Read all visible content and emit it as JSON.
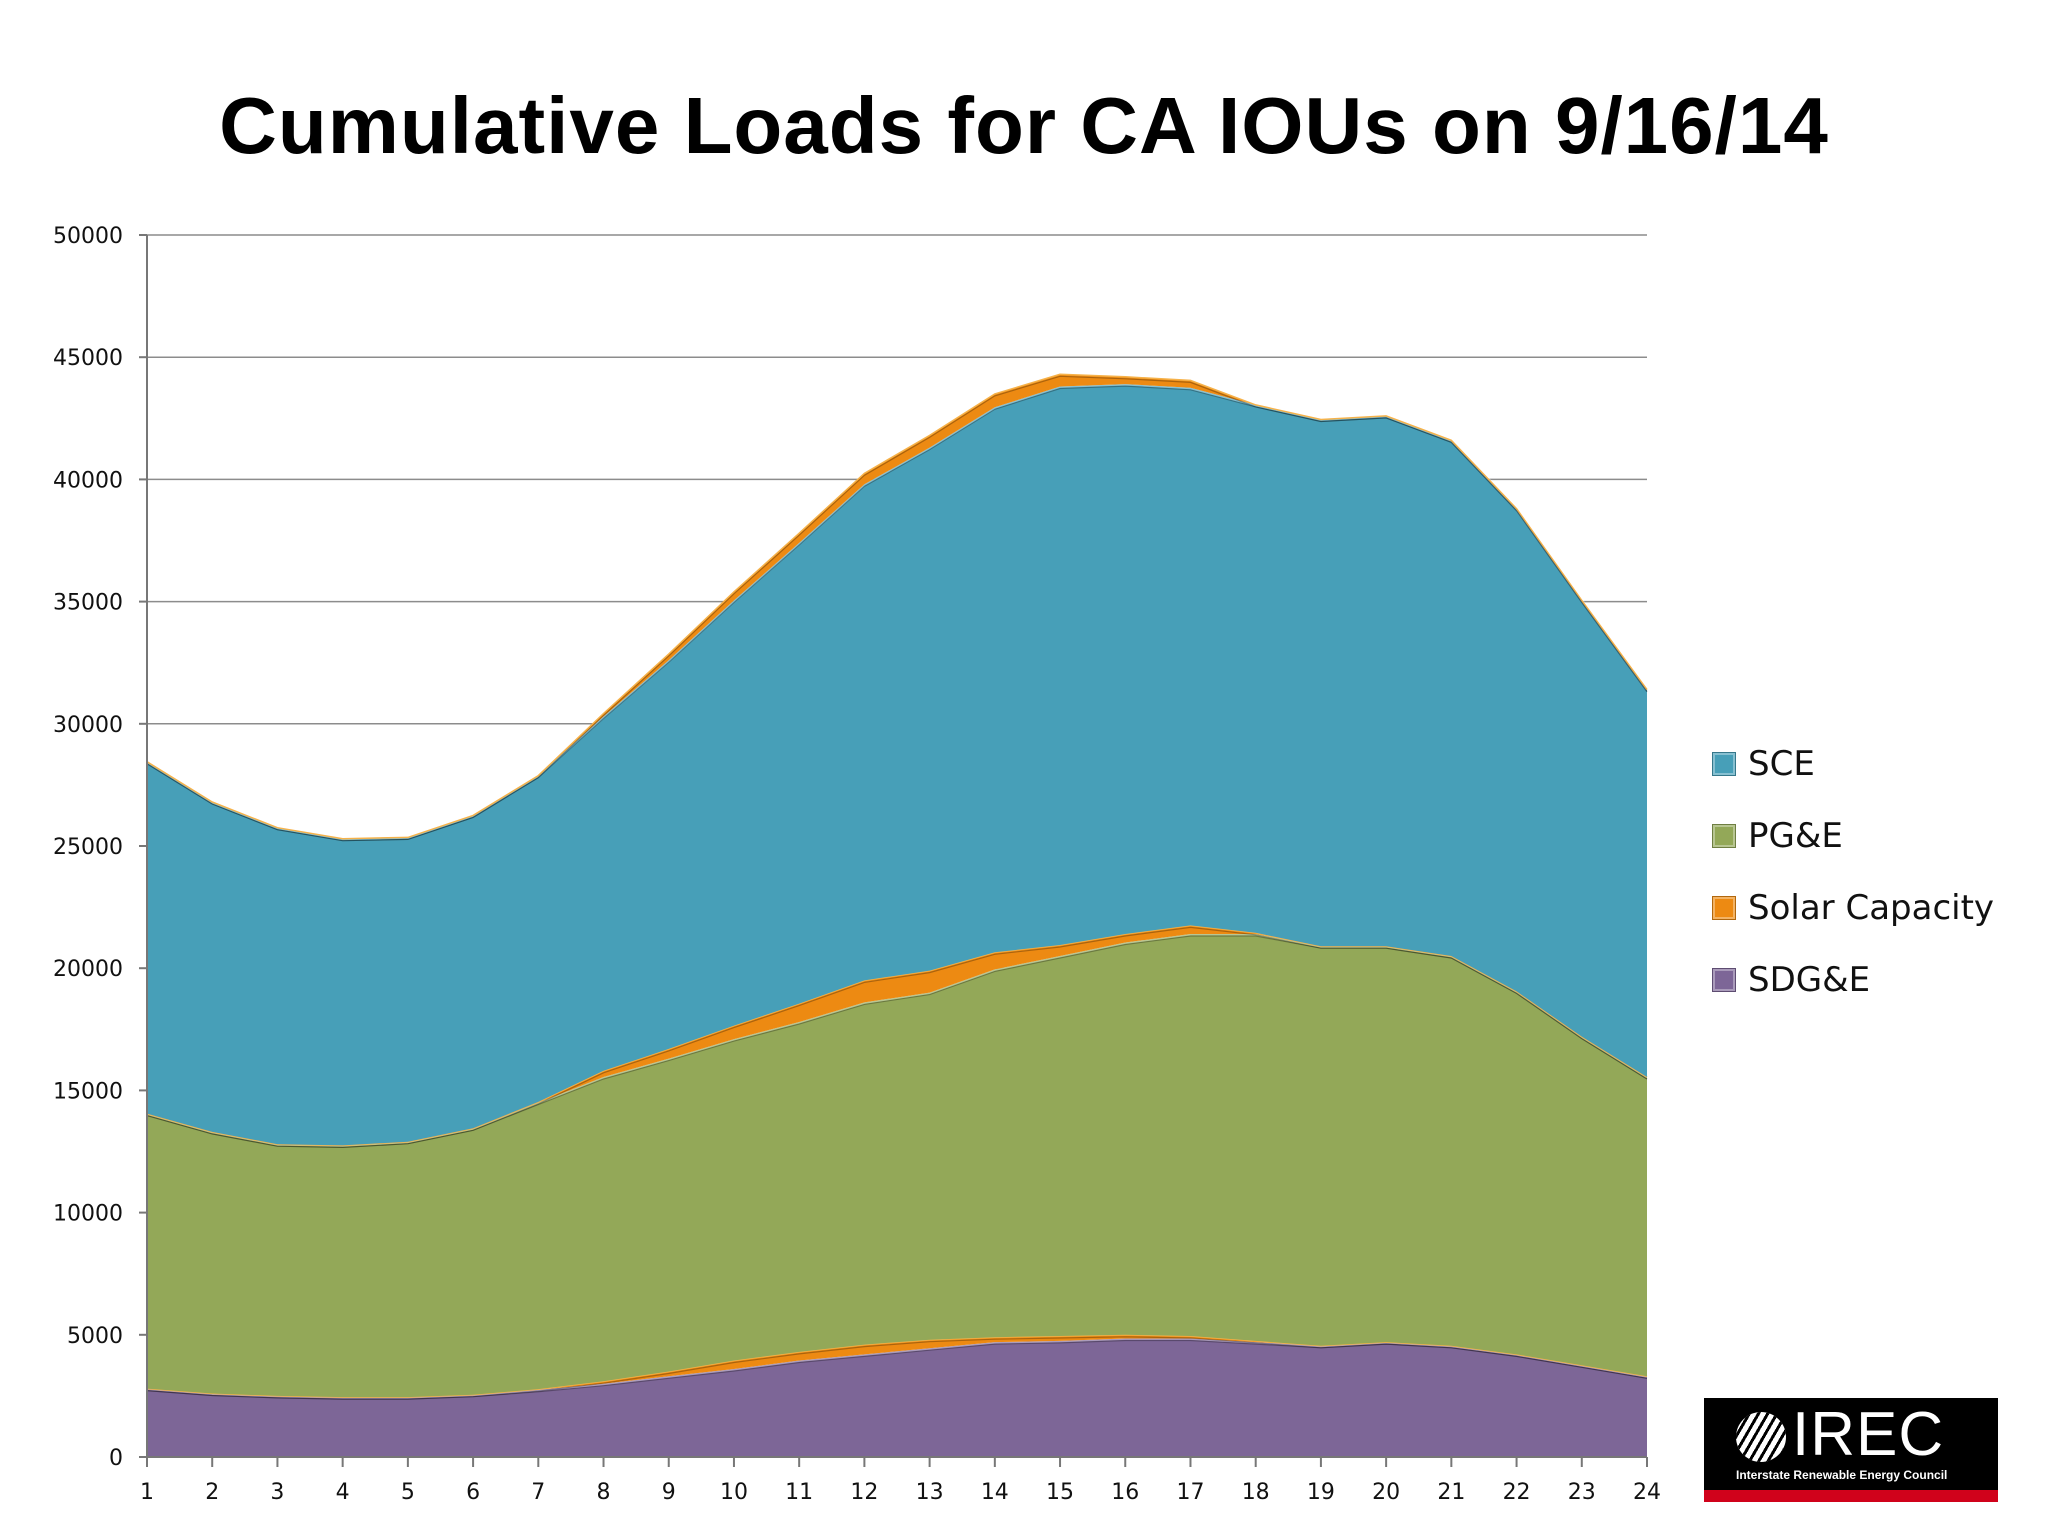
{
  "chart_data": {
    "type": "area",
    "stacked": true,
    "title": "Cumulative Loads for CA IOUs on 9/16/14",
    "xlabel": "",
    "ylabel": "",
    "x": [
      1,
      2,
      3,
      4,
      5,
      6,
      7,
      8,
      9,
      10,
      11,
      12,
      13,
      14,
      15,
      16,
      17,
      18,
      19,
      20,
      21,
      22,
      23,
      24
    ],
    "ylim": [
      0,
      50000
    ],
    "yticks": [
      0,
      5000,
      10000,
      15000,
      20000,
      25000,
      30000,
      35000,
      40000,
      45000,
      50000
    ],
    "grid": true,
    "legend_position": "right",
    "series": [
      {
        "name": "SDG&E",
        "color": "#7d6697",
        "values": [
          2800,
          2600,
          2500,
          2450,
          2450,
          2550,
          2750,
          3000,
          3300,
          3600,
          3950,
          4200,
          4450,
          4700,
          4750,
          4850,
          4850,
          4700,
          4550,
          4700,
          4550,
          4200,
          3750,
          3300
        ]
      },
      {
        "name": "Solar Capacity",
        "color": "#ed8a12",
        "values": [
          0,
          0,
          0,
          0,
          0,
          0,
          30,
          100,
          200,
          350,
          350,
          400,
          350,
          200,
          200,
          150,
          100,
          50,
          0,
          0,
          0,
          0,
          0,
          0
        ]
      },
      {
        "name": "PG&E",
        "color": "#93a858",
        "values": [
          11250,
          10700,
          10300,
          10300,
          10450,
          10900,
          11720,
          12450,
          12800,
          13150,
          13500,
          14000,
          14200,
          15050,
          15550,
          16050,
          16450,
          16650,
          16350,
          16200,
          15950,
          14850,
          13450,
          12250
        ]
      },
      {
        "name": "Solar Capacity",
        "color": "#ed8a12",
        "values": [
          0,
          0,
          0,
          0,
          0,
          0,
          30,
          250,
          400,
          550,
          750,
          900,
          900,
          700,
          450,
          350,
          350,
          50,
          0,
          0,
          0,
          0,
          0,
          0
        ]
      },
      {
        "name": "SCE",
        "color": "#479fb8",
        "values": [
          14400,
          13500,
          12950,
          12550,
          12450,
          12800,
          13350,
          14500,
          15900,
          17400,
          18850,
          20300,
          21400,
          22300,
          22850,
          22500,
          22000,
          21600,
          21550,
          21700,
          21100,
          19750,
          17850,
          15850
        ]
      },
      {
        "name": "Solar Capacity",
        "color": "#ed8a12",
        "values": [
          0,
          0,
          0,
          0,
          0,
          0,
          0,
          120,
          250,
          350,
          400,
          450,
          500,
          550,
          500,
          300,
          300,
          0,
          0,
          0,
          0,
          0,
          0,
          0
        ]
      }
    ]
  },
  "legend": [
    {
      "label": "SCE",
      "color": "#479fb8"
    },
    {
      "label": "PG&E",
      "color": "#93a858"
    },
    {
      "label": "Solar Capacity",
      "color": "#ed8a12"
    },
    {
      "label": "SDG&E",
      "color": "#7d6697"
    }
  ],
  "logo": {
    "text": "IREC",
    "subtitle": "Interstate Renewable Energy Council"
  }
}
